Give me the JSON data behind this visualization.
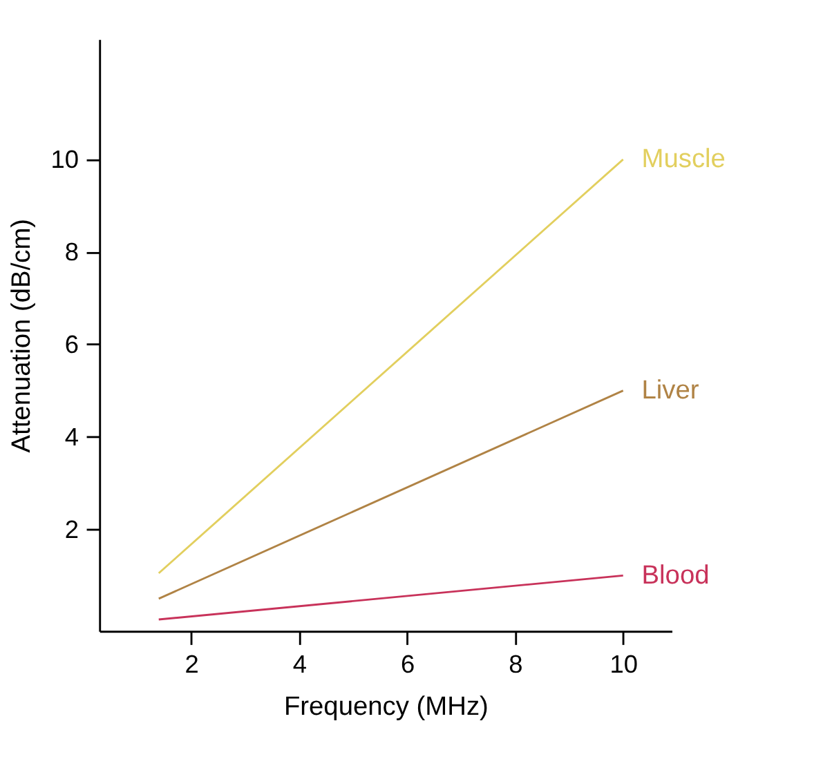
{
  "chart_data": {
    "type": "line",
    "xlabel": "Frequency (MHz)",
    "ylabel": "Attenuation (dB/cm)",
    "x": [
      1.4,
      10
    ],
    "series": [
      {
        "name": "Muscle",
        "color": "#e2cf5e",
        "values": [
          1.05,
          10
        ]
      },
      {
        "name": "Liver",
        "color": "#b08345",
        "values": [
          0.5,
          5
        ]
      },
      {
        "name": "Blood",
        "color": "#c8325a",
        "values": [
          0.05,
          1
        ]
      }
    ],
    "xlim": [
      0.3,
      10.9
    ],
    "ylim": [
      -0.2,
      12.6
    ],
    "xticks": [
      2,
      4,
      6,
      8,
      10
    ],
    "yticks": [
      2,
      4,
      6,
      8,
      10
    ],
    "grid": false,
    "legend": false,
    "marker": "none",
    "line_style": "solid"
  }
}
